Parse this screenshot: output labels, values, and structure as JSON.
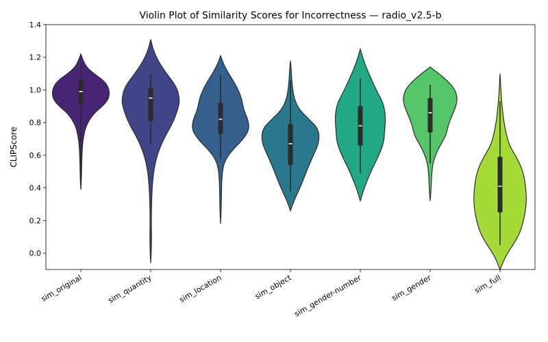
{
  "chart_data": {
    "type": "violin",
    "title": "Violin Plot of Similarity Scores for Incorrectness — radio_v2.5-b",
    "xlabel": "",
    "ylabel": "CLIPScore",
    "ylim": [
      -0.1,
      1.4
    ],
    "yticks": [
      "0.0",
      "0.2",
      "0.4",
      "0.6",
      "0.8",
      "1.0",
      "1.2",
      "1.4"
    ],
    "grid": false,
    "legend": "none",
    "categories": [
      "sim_original",
      "sim_quantity",
      "sim_location",
      "sim_object",
      "sim_gender-number",
      "sim_gender",
      "sim_full"
    ],
    "colors": [
      "#482475",
      "#414487",
      "#355f8d",
      "#2a788e",
      "#22a884",
      "#54c568",
      "#a5db36"
    ],
    "series": [
      {
        "category": "sim_original",
        "min": 0.39,
        "max": 1.22,
        "q1": 0.91,
        "median": 0.99,
        "q3": 1.06,
        "whisker_low": 0.44,
        "whisker_high": 1.16,
        "profile": [
          [
            0.39,
            0.0
          ],
          [
            0.45,
            0.02
          ],
          [
            0.55,
            0.03
          ],
          [
            0.65,
            0.05
          ],
          [
            0.72,
            0.1
          ],
          [
            0.78,
            0.18
          ],
          [
            0.85,
            0.42
          ],
          [
            0.9,
            0.75
          ],
          [
            0.94,
            0.95
          ],
          [
            0.98,
            1.0
          ],
          [
            1.02,
            0.95
          ],
          [
            1.06,
            0.78
          ],
          [
            1.1,
            0.45
          ],
          [
            1.14,
            0.2
          ],
          [
            1.18,
            0.08
          ],
          [
            1.22,
            0.0
          ]
        ]
      },
      {
        "category": "sim_quantity",
        "min": -0.06,
        "max": 1.31,
        "q1": 0.81,
        "median": 0.95,
        "q3": 1.01,
        "whisker_low": 0.67,
        "whisker_high": 1.1,
        "profile": [
          [
            -0.06,
            0.0
          ],
          [
            0.0,
            0.02
          ],
          [
            0.1,
            0.03
          ],
          [
            0.2,
            0.02
          ],
          [
            0.3,
            0.03
          ],
          [
            0.4,
            0.05
          ],
          [
            0.5,
            0.1
          ],
          [
            0.6,
            0.22
          ],
          [
            0.7,
            0.45
          ],
          [
            0.8,
            0.78
          ],
          [
            0.9,
            0.98
          ],
          [
            0.95,
            1.0
          ],
          [
            1.02,
            0.9
          ],
          [
            1.1,
            0.55
          ],
          [
            1.18,
            0.25
          ],
          [
            1.25,
            0.08
          ],
          [
            1.31,
            0.0
          ]
        ]
      },
      {
        "category": "sim_location",
        "min": 0.18,
        "max": 1.21,
        "q1": 0.73,
        "median": 0.82,
        "q3": 0.92,
        "whisker_low": 0.58,
        "whisker_high": 1.09,
        "profile": [
          [
            0.18,
            0.0
          ],
          [
            0.25,
            0.02
          ],
          [
            0.35,
            0.03
          ],
          [
            0.45,
            0.04
          ],
          [
            0.55,
            0.1
          ],
          [
            0.62,
            0.35
          ],
          [
            0.7,
            0.8
          ],
          [
            0.76,
            1.0
          ],
          [
            0.82,
            0.95
          ],
          [
            0.88,
            0.8
          ],
          [
            0.96,
            0.72
          ],
          [
            1.04,
            0.5
          ],
          [
            1.1,
            0.28
          ],
          [
            1.16,
            0.1
          ],
          [
            1.21,
            0.0
          ]
        ]
      },
      {
        "category": "sim_object",
        "min": 0.26,
        "max": 1.18,
        "q1": 0.54,
        "median": 0.67,
        "q3": 0.79,
        "whisker_low": 0.38,
        "whisker_high": 1.06,
        "profile": [
          [
            0.26,
            0.0
          ],
          [
            0.32,
            0.12
          ],
          [
            0.38,
            0.28
          ],
          [
            0.45,
            0.45
          ],
          [
            0.52,
            0.6
          ],
          [
            0.6,
            0.8
          ],
          [
            0.68,
            1.0
          ],
          [
            0.76,
            0.98
          ],
          [
            0.82,
            0.65
          ],
          [
            0.88,
            0.3
          ],
          [
            0.95,
            0.12
          ],
          [
            1.05,
            0.05
          ],
          [
            1.12,
            0.03
          ],
          [
            1.18,
            0.0
          ]
        ]
      },
      {
        "category": "sim_gender-number",
        "min": 0.32,
        "max": 1.25,
        "q1": 0.66,
        "median": 0.78,
        "q3": 0.9,
        "whisker_low": 0.49,
        "whisker_high": 1.07,
        "profile": [
          [
            0.32,
            0.0
          ],
          [
            0.38,
            0.1
          ],
          [
            0.45,
            0.25
          ],
          [
            0.52,
            0.42
          ],
          [
            0.6,
            0.65
          ],
          [
            0.68,
            0.82
          ],
          [
            0.76,
            0.85
          ],
          [
            0.84,
            0.88
          ],
          [
            0.92,
            0.8
          ],
          [
            1.0,
            0.55
          ],
          [
            1.08,
            0.35
          ],
          [
            1.16,
            0.15
          ],
          [
            1.25,
            0.0
          ]
        ]
      },
      {
        "category": "sim_gender",
        "min": 0.32,
        "max": 1.14,
        "q1": 0.74,
        "median": 0.86,
        "q3": 0.95,
        "whisker_low": 0.55,
        "whisker_high": 1.03,
        "profile": [
          [
            0.32,
            0.0
          ],
          [
            0.38,
            0.03
          ],
          [
            0.48,
            0.05
          ],
          [
            0.56,
            0.1
          ],
          [
            0.64,
            0.28
          ],
          [
            0.72,
            0.55
          ],
          [
            0.78,
            0.62
          ],
          [
            0.84,
            0.75
          ],
          [
            0.9,
            0.9
          ],
          [
            0.96,
            0.95
          ],
          [
            1.02,
            0.8
          ],
          [
            1.08,
            0.45
          ],
          [
            1.14,
            0.0
          ]
        ]
      },
      {
        "category": "sim_full",
        "min": -0.1,
        "max": 1.1,
        "q1": 0.25,
        "median": 0.41,
        "q3": 0.59,
        "whisker_low": 0.05,
        "whisker_high": 0.93,
        "profile": [
          [
            -0.1,
            0.0
          ],
          [
            -0.02,
            0.18
          ],
          [
            0.05,
            0.45
          ],
          [
            0.12,
            0.68
          ],
          [
            0.2,
            0.82
          ],
          [
            0.3,
            0.92
          ],
          [
            0.4,
            0.9
          ],
          [
            0.5,
            0.8
          ],
          [
            0.58,
            0.6
          ],
          [
            0.66,
            0.32
          ],
          [
            0.74,
            0.2
          ],
          [
            0.82,
            0.12
          ],
          [
            0.92,
            0.06
          ],
          [
            1.0,
            0.03
          ],
          [
            1.1,
            0.0
          ]
        ]
      }
    ]
  }
}
